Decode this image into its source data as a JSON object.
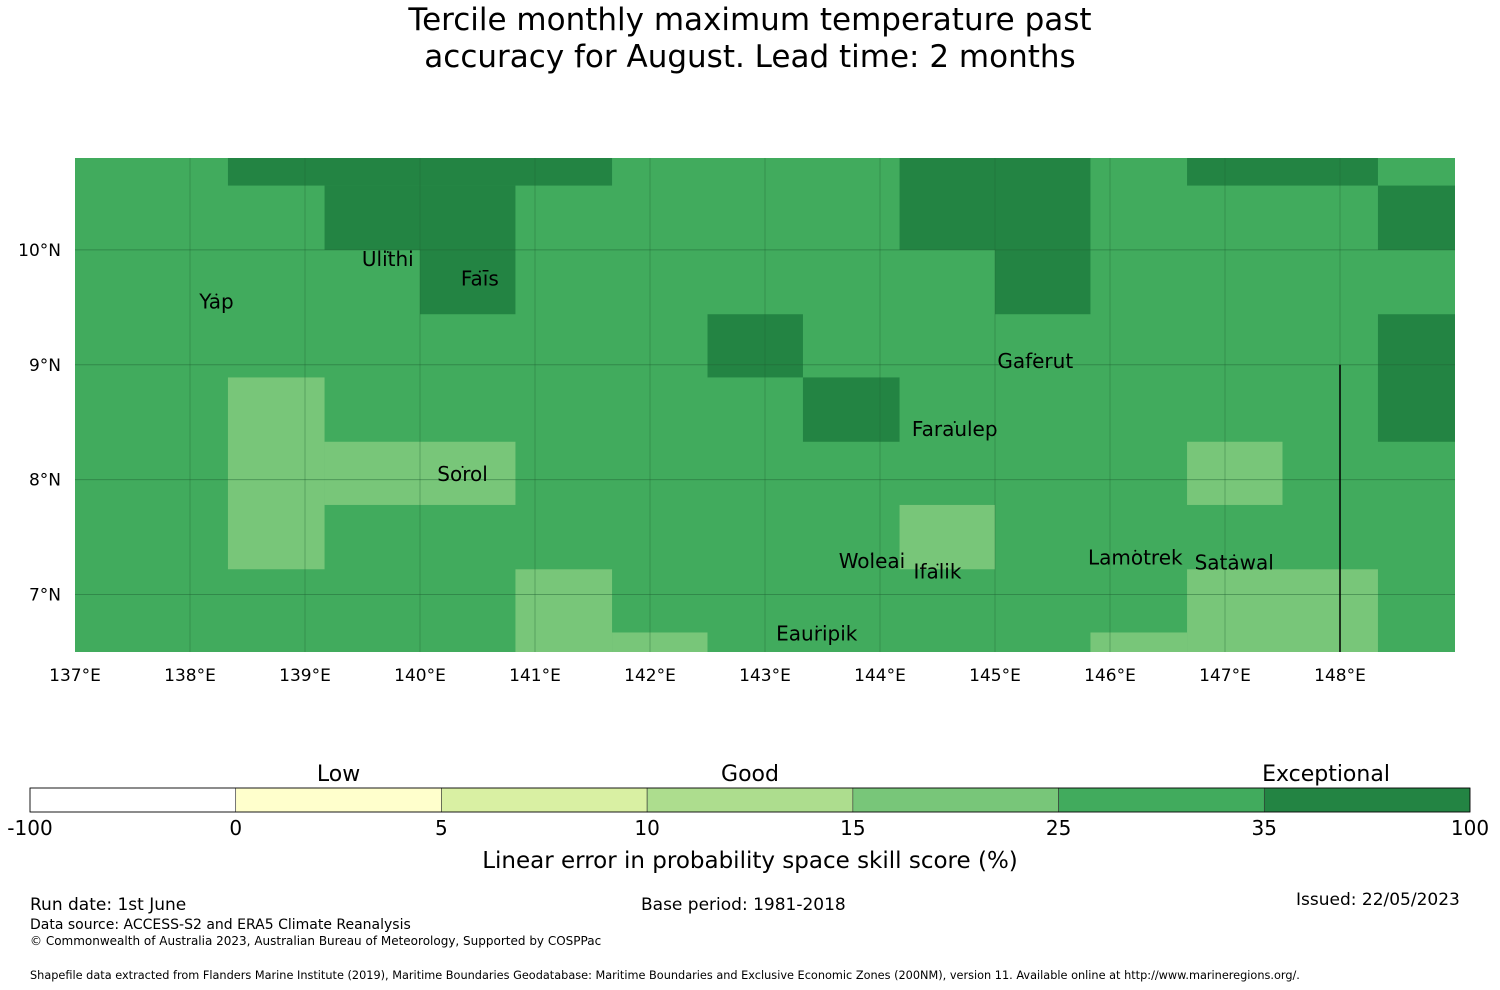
{
  "title": {
    "line1": "Tercile monthly maximum temperature past",
    "line2": "accuracy for August. Lead time: 2 months"
  },
  "map": {
    "lon_range": [
      137,
      149
    ],
    "lat_range": [
      6.5,
      10.8
    ],
    "x_ticks": [
      {
        "value": 137,
        "label": "137°E"
      },
      {
        "value": 138,
        "label": "138°E"
      },
      {
        "value": 139,
        "label": "139°E"
      },
      {
        "value": 140,
        "label": "140°E"
      },
      {
        "value": 141,
        "label": "141°E"
      },
      {
        "value": 142,
        "label": "142°E"
      },
      {
        "value": 143,
        "label": "143°E"
      },
      {
        "value": 144,
        "label": "144°E"
      },
      {
        "value": 145,
        "label": "145°E"
      },
      {
        "value": 146,
        "label": "146°E"
      },
      {
        "value": 147,
        "label": "147°E"
      },
      {
        "value": 148,
        "label": "148°E"
      }
    ],
    "y_ticks": [
      {
        "value": 10,
        "label": "10°N"
      },
      {
        "value": 9,
        "label": "9°N"
      },
      {
        "value": 8,
        "label": "8°N"
      },
      {
        "value": 7,
        "label": "7°N"
      }
    ],
    "base_color": "#41ab5d",
    "cells": [
      {
        "lon": [
          138.33,
          141.67
        ],
        "lat": [
          10.56,
          10.8
        ],
        "color": "#238443"
      },
      {
        "lon": [
          139.17,
          140.83
        ],
        "lat": [
          10.0,
          10.56
        ],
        "color": "#238443"
      },
      {
        "lon": [
          140.0,
          140.83
        ],
        "lat": [
          9.44,
          10.0
        ],
        "color": "#238443"
      },
      {
        "lon": [
          144.17,
          145.83
        ],
        "lat": [
          10.0,
          10.8
        ],
        "color": "#238443"
      },
      {
        "lon": [
          145.0,
          145.83
        ],
        "lat": [
          9.44,
          10.0
        ],
        "color": "#238443"
      },
      {
        "lon": [
          146.67,
          148.33
        ],
        "lat": [
          10.56,
          10.8
        ],
        "color": "#238443"
      },
      {
        "lon": [
          148.33,
          149.0
        ],
        "lat": [
          10.0,
          10.56
        ],
        "color": "#238443"
      },
      {
        "lon": [
          142.5,
          143.33
        ],
        "lat": [
          8.89,
          9.44
        ],
        "color": "#238443"
      },
      {
        "lon": [
          143.33,
          144.17
        ],
        "lat": [
          8.33,
          8.89
        ],
        "color": "#238443"
      },
      {
        "lon": [
          148.33,
          149.0
        ],
        "lat": [
          8.33,
          9.44
        ],
        "color": "#238443"
      },
      {
        "lon": [
          138.33,
          139.17
        ],
        "lat": [
          7.22,
          8.89
        ],
        "color": "#78c679"
      },
      {
        "lon": [
          139.17,
          140.83
        ],
        "lat": [
          7.78,
          8.33
        ],
        "color": "#78c679"
      },
      {
        "lon": [
          144.17,
          145.0
        ],
        "lat": [
          7.22,
          7.78
        ],
        "color": "#78c679"
      },
      {
        "lon": [
          146.67,
          147.5
        ],
        "lat": [
          7.78,
          8.33
        ],
        "color": "#78c679"
      },
      {
        "lon": [
          140.83,
          141.67
        ],
        "lat": [
          6.5,
          7.22
        ],
        "color": "#78c679"
      },
      {
        "lon": [
          141.67,
          142.5
        ],
        "lat": [
          6.5,
          6.67
        ],
        "color": "#78c679"
      },
      {
        "lon": [
          145.83,
          146.67
        ],
        "lat": [
          6.5,
          6.67
        ],
        "color": "#78c679"
      },
      {
        "lon": [
          146.67,
          148.33
        ],
        "lat": [
          6.5,
          7.22
        ],
        "color": "#78c679"
      }
    ],
    "boundary_line": {
      "lon": 148.0,
      "lat": [
        6.5,
        9.0
      ]
    },
    "places": [
      {
        "name": "Ulithi",
        "lon": 139.72,
        "lat": 9.86
      },
      {
        "name": "Faīs",
        "lon": 140.52,
        "lat": 9.69
      },
      {
        "name": "Yap",
        "lon": 138.23,
        "lat": 9.49
      },
      {
        "name": "Gaferut",
        "lon": 145.35,
        "lat": 8.97
      },
      {
        "name": "Faraulep",
        "lon": 144.65,
        "lat": 8.38
      },
      {
        "name": "Sorol",
        "lon": 140.37,
        "lat": 7.99
      },
      {
        "name": "Woleai",
        "lon": 143.93,
        "lat": 7.23
      },
      {
        "name": "Ifalik",
        "lon": 144.5,
        "lat": 7.14
      },
      {
        "name": "Lamotrek",
        "lon": 146.22,
        "lat": 7.26
      },
      {
        "name": "Satawal",
        "lon": 147.08,
        "lat": 7.22
      },
      {
        "name": "Eauripik",
        "lon": 143.45,
        "lat": 6.6
      }
    ]
  },
  "legend": {
    "title": "Linear error in probability space skill score (%)",
    "category_labels": [
      {
        "label": "Low",
        "at_bin": 1.5
      },
      {
        "label": "Good",
        "at_bin": 3.5
      },
      {
        "label": "Exceptional",
        "at_bin": 6.3
      }
    ],
    "ticks": [
      "-100",
      "0",
      "5",
      "10",
      "15",
      "25",
      "35",
      "100"
    ],
    "colors": [
      "#ffffff",
      "#ffffcc",
      "#d9f0a3",
      "#addd8e",
      "#78c679",
      "#41ab5d",
      "#238443"
    ]
  },
  "footer": {
    "run_date": "Run date: 1st June",
    "base_period": "Base period: 1981-2018",
    "issued": "Issued: 22/05/2023",
    "data_source": "Data source: ACCESS-S2 and ERA5 Climate Reanalysis",
    "copyright": "© Commonwealth of Australia 2023, Australian Bureau of Meteorology, Supported by COSPPac",
    "shapefile": "Shapefile data extracted from Flanders Marine Institute (2019), Maritime Boundaries Geodatabase: Maritime Boundaries and Exclusive Economic Zones (200NM), version 11. Available online at http://www.marineregions.org/."
  }
}
